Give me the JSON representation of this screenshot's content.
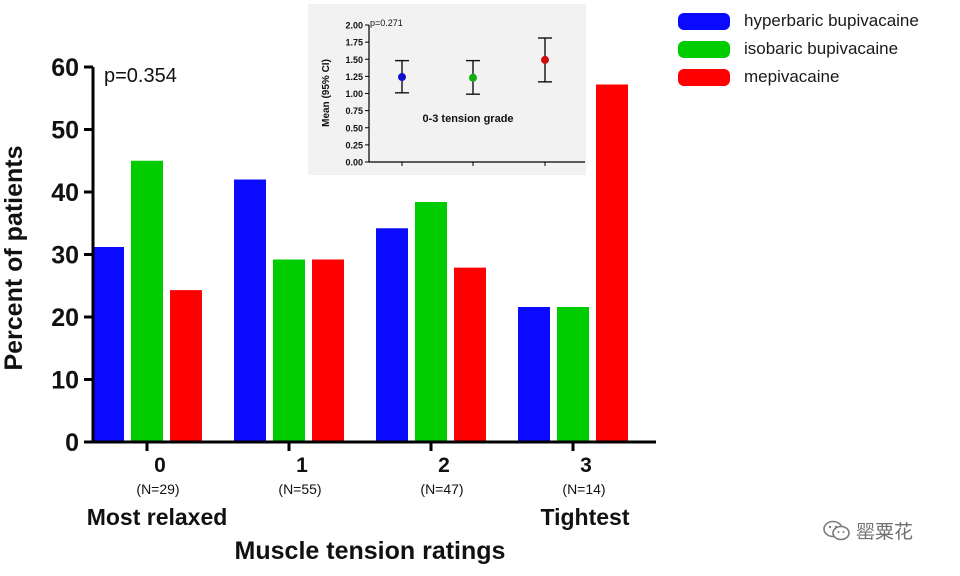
{
  "chart_data": [
    {
      "type": "bar",
      "pvalue": "p=0.354",
      "xlabel": "Muscle tension ratings",
      "ylabel": "Percent of patients",
      "ylim": [
        0,
        60
      ],
      "yticks": [
        "0",
        "10",
        "20",
        "30",
        "40",
        "50",
        "60"
      ],
      "categories": [
        "0",
        "1",
        "2",
        "3"
      ],
      "category_n": [
        "(N=29)",
        "(N=55)",
        "(N=47)",
        "(N=14)"
      ],
      "end_labels": {
        "left": "Most relaxed",
        "right": "Tightest"
      },
      "series": [
        {
          "name": "hyperbaric bupivacaine",
          "color": "#0a0aff",
          "values": [
            31.2,
            42.0,
            34.2,
            21.6
          ]
        },
        {
          "name": "isobaric bupivacaine",
          "color": "#00cc00",
          "values": [
            45.0,
            29.2,
            38.4,
            21.6
          ]
        },
        {
          "name": "mepivacaine",
          "color": "#ff0000",
          "values": [
            24.3,
            29.2,
            27.9,
            57.2
          ]
        }
      ]
    },
    {
      "type": "scatter",
      "subtype": "mean_with_error_bars",
      "pvalue": "p=0.271",
      "ylabel": "Mean (95% CI)",
      "annotation": "0-3 tension grade",
      "ylim": [
        0,
        2
      ],
      "yticks": [
        "0.00",
        "0.25",
        "0.50",
        "0.75",
        "1.00",
        "1.25",
        "1.50",
        "1.75",
        "2.00"
      ],
      "points": [
        {
          "series": "hyperbaric bupivacaine",
          "color": "#1010cc",
          "mean": 1.24,
          "lower": 1.01,
          "upper": 1.48
        },
        {
          "series": "isobaric bupivacaine",
          "color": "#10b010",
          "mean": 1.23,
          "lower": 0.99,
          "upper": 1.48
        },
        {
          "series": "mepivacaine",
          "color": "#cc1010",
          "mean": 1.49,
          "lower": 1.17,
          "upper": 1.81
        }
      ]
    }
  ],
  "watermark": {
    "text": "罂粟花"
  }
}
